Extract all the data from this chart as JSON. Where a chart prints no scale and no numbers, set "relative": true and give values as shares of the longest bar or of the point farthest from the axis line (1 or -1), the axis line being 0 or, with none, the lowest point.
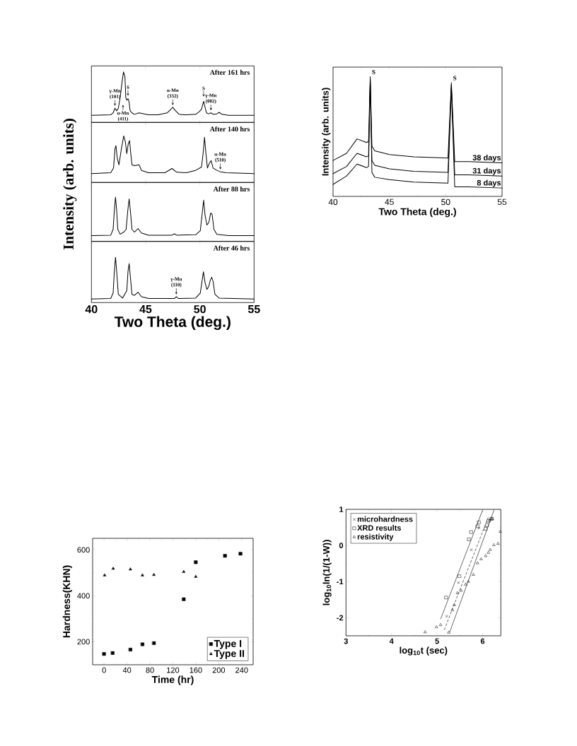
{
  "chart_data": [
    {
      "type": "line",
      "title": "After 161 hrs",
      "ylabel": "Intensity (arb. units)",
      "relative": true,
      "xlim": [
        40,
        55
      ],
      "xticks": [
        40,
        45,
        50,
        55
      ],
      "tick_labels": false,
      "color": "#000000",
      "x": [
        40,
        41.78,
        42.0,
        42.17,
        42.33,
        42.48,
        42.65,
        42.83,
        42.96,
        43.09,
        43.17,
        43.26,
        43.37,
        43.46,
        43.57,
        43.74,
        43.96,
        44.39,
        45.26,
        46.13,
        47.0,
        47.33,
        47.5,
        47.76,
        48.09,
        48.74,
        49.61,
        49.93,
        50.15,
        50.26,
        50.35,
        50.48,
        50.61,
        50.8,
        51.02,
        51.24,
        51.57,
        51.78,
        52.04,
        52.65,
        55
      ],
      "values": [
        0.14,
        0.15,
        0.19,
        0.28,
        0.23,
        0.28,
        0.49,
        0.81,
        1.0,
        0.91,
        0.49,
        0.44,
        0.47,
        0.42,
        0.23,
        0.19,
        0.16,
        0.19,
        0.15,
        0.15,
        0.19,
        0.26,
        0.3,
        0.23,
        0.16,
        0.15,
        0.16,
        0.21,
        0.26,
        0.35,
        0.42,
        0.3,
        0.19,
        0.17,
        0.19,
        0.16,
        0.17,
        0.2,
        0.16,
        0.14,
        0.14
      ],
      "annotations": [
        {
          "text": "γ-Mn (101)",
          "x": 42.17,
          "y": 0.33
        },
        {
          "text": "S",
          "x": 43.37,
          "y": 0.53
        },
        {
          "text": "α-Mn (411)",
          "x": 42.91,
          "y": 0.35
        },
        {
          "text": "α-Mn (332)",
          "x": 47.5,
          "y": 0.34
        },
        {
          "text": "S",
          "x": 50.35,
          "y": 0.51
        },
        {
          "text": "γ-Mn (002)",
          "x": 51.02,
          "y": 0.24
        }
      ]
    },
    {
      "type": "line",
      "title": "After 140 hrs",
      "relative": true,
      "xlim": [
        40,
        55
      ],
      "xticks": [
        40,
        45,
        50,
        55
      ],
      "tick_labels": false,
      "color": "#000000",
      "x": [
        40,
        41.78,
        42.04,
        42.17,
        42.26,
        42.39,
        42.54,
        42.76,
        42.98,
        43.13,
        43.26,
        43.39,
        43.52,
        43.63,
        43.74,
        43.96,
        44.17,
        44.39,
        44.61,
        45.26,
        46.78,
        47.43,
        47.87,
        48.74,
        49.61,
        50.15,
        50.3,
        50.43,
        50.54,
        50.7,
        50.87,
        51.04,
        51.22,
        51.57,
        51.89,
        52.43,
        55
      ],
      "values": [
        0.19,
        0.21,
        0.31,
        0.72,
        0.79,
        0.51,
        0.38,
        0.72,
        1.0,
        0.87,
        0.62,
        0.82,
        0.9,
        0.62,
        0.38,
        0.36,
        0.37,
        0.38,
        0.26,
        0.21,
        0.21,
        0.3,
        0.22,
        0.21,
        0.26,
        0.33,
        0.62,
        0.97,
        0.67,
        0.31,
        0.41,
        0.47,
        0.31,
        0.26,
        0.23,
        0.21,
        0.19
      ],
      "annotations": [
        {
          "text": "α-Mn (510)",
          "x": 51.89,
          "y": 0.28
        }
      ]
    },
    {
      "type": "line",
      "title": "After 88 hrs",
      "relative": true,
      "xlim": [
        40,
        55
      ],
      "xticks": [
        40,
        45,
        50,
        55
      ],
      "tick_labels": false,
      "color": "#000000",
      "x": [
        40,
        41.78,
        42.0,
        42.11,
        42.22,
        42.33,
        42.43,
        42.65,
        42.98,
        43.2,
        43.35,
        43.48,
        43.61,
        43.74,
        43.96,
        44.3,
        44.61,
        45.26,
        47.43,
        47.65,
        47.87,
        49.61,
        50.04,
        50.22,
        50.35,
        50.48,
        50.65,
        50.83,
        51.0,
        51.13,
        51.3,
        51.57,
        52.65,
        55
      ],
      "values": [
        0.13,
        0.14,
        0.27,
        0.69,
        1.0,
        0.69,
        0.27,
        0.16,
        0.21,
        0.27,
        0.69,
        0.96,
        0.64,
        0.27,
        0.21,
        0.29,
        0.19,
        0.14,
        0.14,
        0.17,
        0.14,
        0.15,
        0.24,
        0.64,
        0.93,
        0.59,
        0.37,
        0.43,
        0.64,
        0.61,
        0.27,
        0.16,
        0.13,
        0.13
      ]
    },
    {
      "type": "line",
      "title": "After 46 hrs",
      "xlabel": "Two Theta (deg.)",
      "relative": true,
      "xlim": [
        40,
        55
      ],
      "xticks": [
        40,
        45,
        50,
        55
      ],
      "tick_labels": "x",
      "color": "#000000",
      "x": [
        40,
        41.78,
        42.0,
        42.11,
        42.22,
        42.33,
        42.48,
        42.87,
        43.26,
        43.37,
        43.48,
        43.61,
        43.74,
        43.96,
        44.3,
        44.61,
        45.26,
        47.65,
        47.83,
        48.0,
        49.61,
        50.04,
        50.2,
        50.33,
        50.48,
        50.65,
        50.83,
        50.96,
        51.09,
        51.22,
        51.39,
        51.78,
        55
      ],
      "values": [
        0.08,
        0.09,
        0.21,
        0.68,
        1.0,
        0.68,
        0.18,
        0.1,
        0.26,
        0.68,
        0.86,
        0.52,
        0.18,
        0.16,
        0.23,
        0.13,
        0.09,
        0.09,
        0.13,
        0.09,
        0.1,
        0.21,
        0.47,
        0.68,
        0.44,
        0.29,
        0.36,
        0.49,
        0.56,
        0.47,
        0.18,
        0.1,
        0.08
      ],
      "annotations": [
        {
          "text": "γ-Mn (110)",
          "x": 47.83,
          "y": 0.18
        }
      ]
    },
    {
      "type": "line",
      "xlabel": "Two Theta (deg.)",
      "ylabel": "Intensity (arb. units)",
      "relative": true,
      "xlim": [
        40,
        55
      ],
      "xticks": [
        40,
        45,
        50,
        55
      ],
      "x": [
        40,
        41.2,
        42.13,
        42.97,
        43.15,
        43.3,
        43.45,
        43.7,
        45,
        47.16,
        50.2,
        50.5,
        50.8,
        52,
        55
      ],
      "series": [
        {
          "name": "38 days",
          "color": "#000000",
          "values": [
            0.3,
            0.36,
            0.48,
            0.45,
            0.46,
            1.0,
            0.42,
            0.38,
            0.35,
            0.33,
            0.32,
            0.95,
            0.29,
            0.29,
            0.28
          ]
        },
        {
          "name": "31 days",
          "color": "#000000",
          "values": [
            0.19,
            0.25,
            0.36,
            0.33,
            0.34,
            0.98,
            0.3,
            0.26,
            0.23,
            0.21,
            0.2,
            0.93,
            0.18,
            0.18,
            0.17
          ]
        },
        {
          "name": "8 days",
          "color": "#000000",
          "values": [
            0.1,
            0.17,
            0.27,
            0.24,
            0.25,
            0.96,
            0.2,
            0.16,
            0.14,
            0.12,
            0.11,
            0.91,
            0.08,
            0.08,
            0.07
          ]
        }
      ],
      "annotations": [
        {
          "text": "S",
          "x": 43.3,
          "y": 1.0
        },
        {
          "text": "S",
          "x": 50.5,
          "y": 0.95
        }
      ]
    },
    {
      "type": "scatter",
      "xlabel": "Time (hr)",
      "ylabel": "Hardness(KHN)",
      "xlim": [
        -20,
        260
      ],
      "xticks": [
        0,
        40,
        80,
        120,
        160,
        200,
        240
      ],
      "ylim": [
        100,
        650
      ],
      "yticks": [
        200,
        400,
        600
      ],
      "legend": "bottom right",
      "series": [
        {
          "name": "Type I",
          "color": "#000000",
          "marker": "square",
          "x": [
            0,
            15,
            46,
            67,
            87,
            139,
            160,
            211,
            238
          ],
          "values": [
            147,
            151,
            166,
            189,
            194,
            385,
            546,
            574,
            583
          ]
        },
        {
          "name": "Type II",
          "color": "#000000",
          "marker": "triangle",
          "x": [
            1,
            16,
            46,
            67,
            87,
            139,
            160
          ],
          "values": [
            489,
            518,
            515,
            489,
            491,
            504,
            483
          ]
        }
      ]
    },
    {
      "type": "scatter",
      "xlabel": "log$_{10}$t (sec)",
      "ylabel": "log$_{10}$ln(1/(1-W))",
      "xlim": [
        3,
        6.4
      ],
      "xticks": [
        3,
        4,
        5,
        6
      ],
      "ylim": [
        -2.5,
        1
      ],
      "yticks": [
        -2,
        -1,
        0,
        1
      ],
      "legend": "top left",
      "series": [
        {
          "name": "microhardness",
          "color": "#000000",
          "marker": "cross",
          "x": [
            5.21,
            5.47,
            5.75,
            5.92
          ],
          "values": [
            -1.96,
            -1.03,
            -0.12,
            0.48
          ]
        },
        {
          "name": "XRD results",
          "color": "#000000",
          "marker": "square",
          "x": [
            5.2,
            5.49,
            5.7,
            5.75,
            5.89,
            5.92,
            6.07,
            6.1,
            6.13,
            6.2
          ],
          "values": [
            -1.44,
            -0.85,
            0.17,
            0.37,
            0.53,
            0.64,
            0.46,
            0.56,
            0.68,
            0.74
          ]
        },
        {
          "name": "resistivity",
          "color": "#000000",
          "marker": "triangle",
          "x": [
            4.74,
            4.99,
            5.08,
            5.26,
            5.34,
            5.38,
            5.45,
            5.53,
            5.63,
            5.69,
            5.8,
            5.89,
            5.97,
            6.07,
            6.13,
            6.15,
            6.17,
            6.19,
            6.22,
            6.25,
            6.34,
            6.39
          ],
          "values": [
            -2.4,
            -2.26,
            -2.2,
            -2.41,
            -1.79,
            -1.65,
            -1.32,
            -1.25,
            -1.08,
            -1.0,
            -0.81,
            -0.49,
            -0.38,
            -0.29,
            -0.2,
            0.69,
            -0.12,
            0.73,
            0.73,
            0.01,
            0.05,
            0.38
          ]
        },
        {
          "type": "line",
          "color": "#000000",
          "line_style": "solid",
          "x": [
            5.08,
            6.0
          ],
          "values": [
            -2.03,
            0.98
          ]
        },
        {
          "type": "line",
          "color": "#000000",
          "line_style": "dashed",
          "x": [
            5.16,
            6.12
          ],
          "values": [
            -2.33,
            0.77
          ]
        },
        {
          "type": "line",
          "color": "#000000",
          "line_style": "solid",
          "x": [
            5.28,
            6.25
          ],
          "values": [
            -2.39,
            0.98
          ]
        }
      ]
    }
  ]
}
